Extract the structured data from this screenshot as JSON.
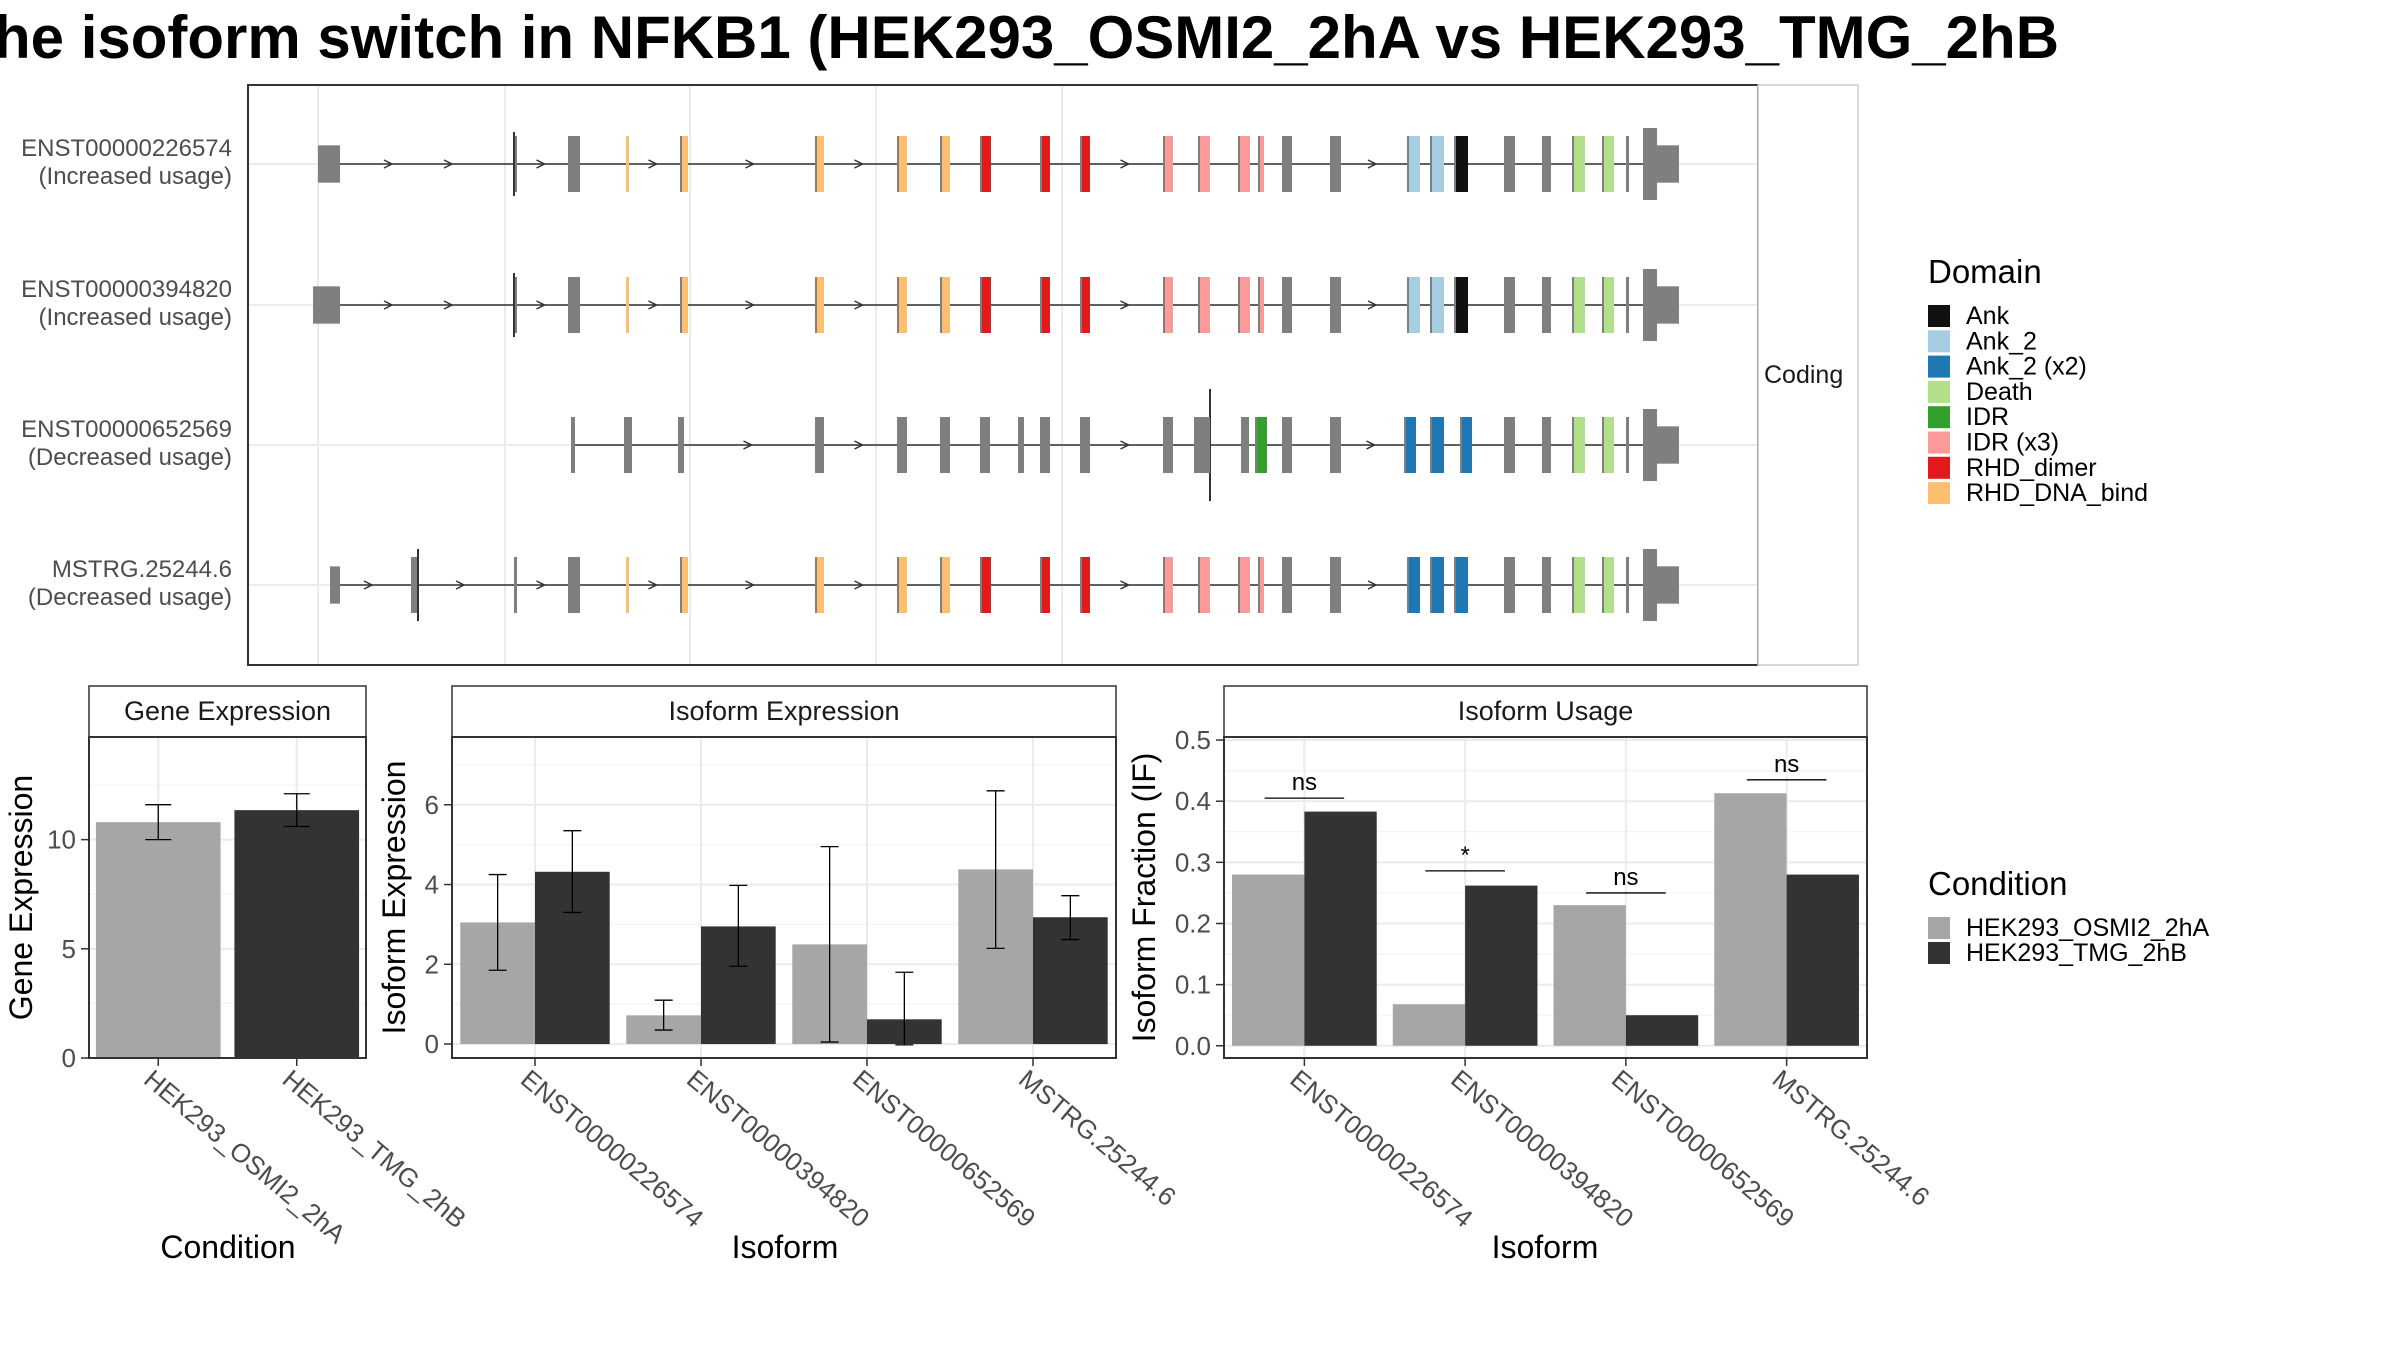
{
  "title": "he isoform switch in NFKB1 (HEK293_OSMI2_2hA vs HEK293_TMG_2hB",
  "structure_panel": {
    "strip_label": "Coding",
    "transcripts": [
      {
        "id": "ENST00000226574",
        "note": "(Increased usage)"
      },
      {
        "id": "ENST00000394820",
        "note": "(Increased usage)"
      },
      {
        "id": "ENST00000652569",
        "note": "(Decreased usage)"
      },
      {
        "id": "MSTRG.25244.6",
        "note": "(Decreased usage)"
      }
    ]
  },
  "legend_domain": {
    "title": "Domain",
    "items": [
      {
        "label": "Ank",
        "color": "#111111"
      },
      {
        "label": "Ank_2",
        "color": "#a6cee3"
      },
      {
        "label": "Ank_2 (x2)",
        "color": "#1f78b4"
      },
      {
        "label": "Death",
        "color": "#b2df8a"
      },
      {
        "label": "IDR",
        "color": "#33a02c"
      },
      {
        "label": "IDR (x3)",
        "color": "#fb9a99"
      },
      {
        "label": "RHD_dimer",
        "color": "#e31a1c"
      },
      {
        "label": "RHD_DNA_bind",
        "color": "#fdbf6f"
      }
    ]
  },
  "legend_condition": {
    "title": "Condition",
    "items": [
      {
        "label": "HEK293_OSMI2_2hA",
        "color": "#a6a6a6"
      },
      {
        "label": "HEK293_TMG_2hB",
        "color": "#333333"
      }
    ]
  },
  "chart_data": [
    {
      "type": "bar",
      "title": "Gene Expression",
      "xlabel": "Condition",
      "ylabel": "Gene Expression",
      "categories": [
        "HEK293_OSMI2_2hA",
        "HEK293_TMG_2hB"
      ],
      "values": [
        10.8,
        11.35
      ],
      "errors": [
        [
          10.0,
          11.6
        ],
        [
          10.6,
          12.1
        ]
      ],
      "yticks": [
        0,
        5,
        10
      ],
      "ylim": [
        0,
        14.7
      ],
      "colors": [
        "#a6a6a6",
        "#333333"
      ]
    },
    {
      "type": "bar",
      "title": "Isoform Expression",
      "xlabel": "Isoform",
      "ylabel": "Isoform Expression",
      "categories": [
        "ENST00000226574",
        "ENST00000394820",
        "ENST00000652569",
        "MSTRG.25244.6"
      ],
      "yticks": [
        0,
        2,
        4,
        6
      ],
      "ylim": [
        -0.35,
        7.7
      ],
      "series": [
        {
          "name": "HEK293_OSMI2_2hA",
          "values": [
            3.05,
            0.72,
            2.5,
            4.38
          ],
          "errors": [
            [
              1.85,
              4.25
            ],
            [
              0.35,
              1.1
            ],
            [
              0.05,
              4.95
            ],
            [
              2.4,
              6.35
            ]
          ]
        },
        {
          "name": "HEK293_TMG_2hB",
          "values": [
            4.32,
            2.95,
            0.62,
            3.18
          ],
          "errors": [
            [
              3.3,
              5.35
            ],
            [
              1.95,
              3.98
            ],
            [
              -0.02,
              1.8
            ],
            [
              2.62,
              3.72
            ]
          ]
        }
      ]
    },
    {
      "type": "bar",
      "title": "Isoform Usage",
      "xlabel": "Isoform",
      "ylabel": "Isoform Fraction (IF)",
      "categories": [
        "ENST00000226574",
        "ENST00000394820",
        "ENST00000652569",
        "MSTRG.25244.6"
      ],
      "yticks": [
        0.0,
        0.1,
        0.2,
        0.3,
        0.4,
        0.5
      ],
      "ytick_labels": [
        "0.0",
        "0.1",
        "0.2",
        "0.3",
        "0.4",
        "0.5"
      ],
      "ylim": [
        -0.02,
        0.505
      ],
      "series": [
        {
          "name": "HEK293_OSMI2_2hA",
          "values": [
            0.28,
            0.068,
            0.23,
            0.413
          ]
        },
        {
          "name": "HEK293_TMG_2hB",
          "values": [
            0.383,
            0.262,
            0.05,
            0.28
          ]
        }
      ],
      "significance": [
        {
          "label": "ns",
          "value": 0.405
        },
        {
          "label": "*",
          "value": 0.286
        },
        {
          "label": "ns",
          "value": 0.25
        },
        {
          "label": "ns",
          "value": 0.435
        }
      ]
    }
  ]
}
